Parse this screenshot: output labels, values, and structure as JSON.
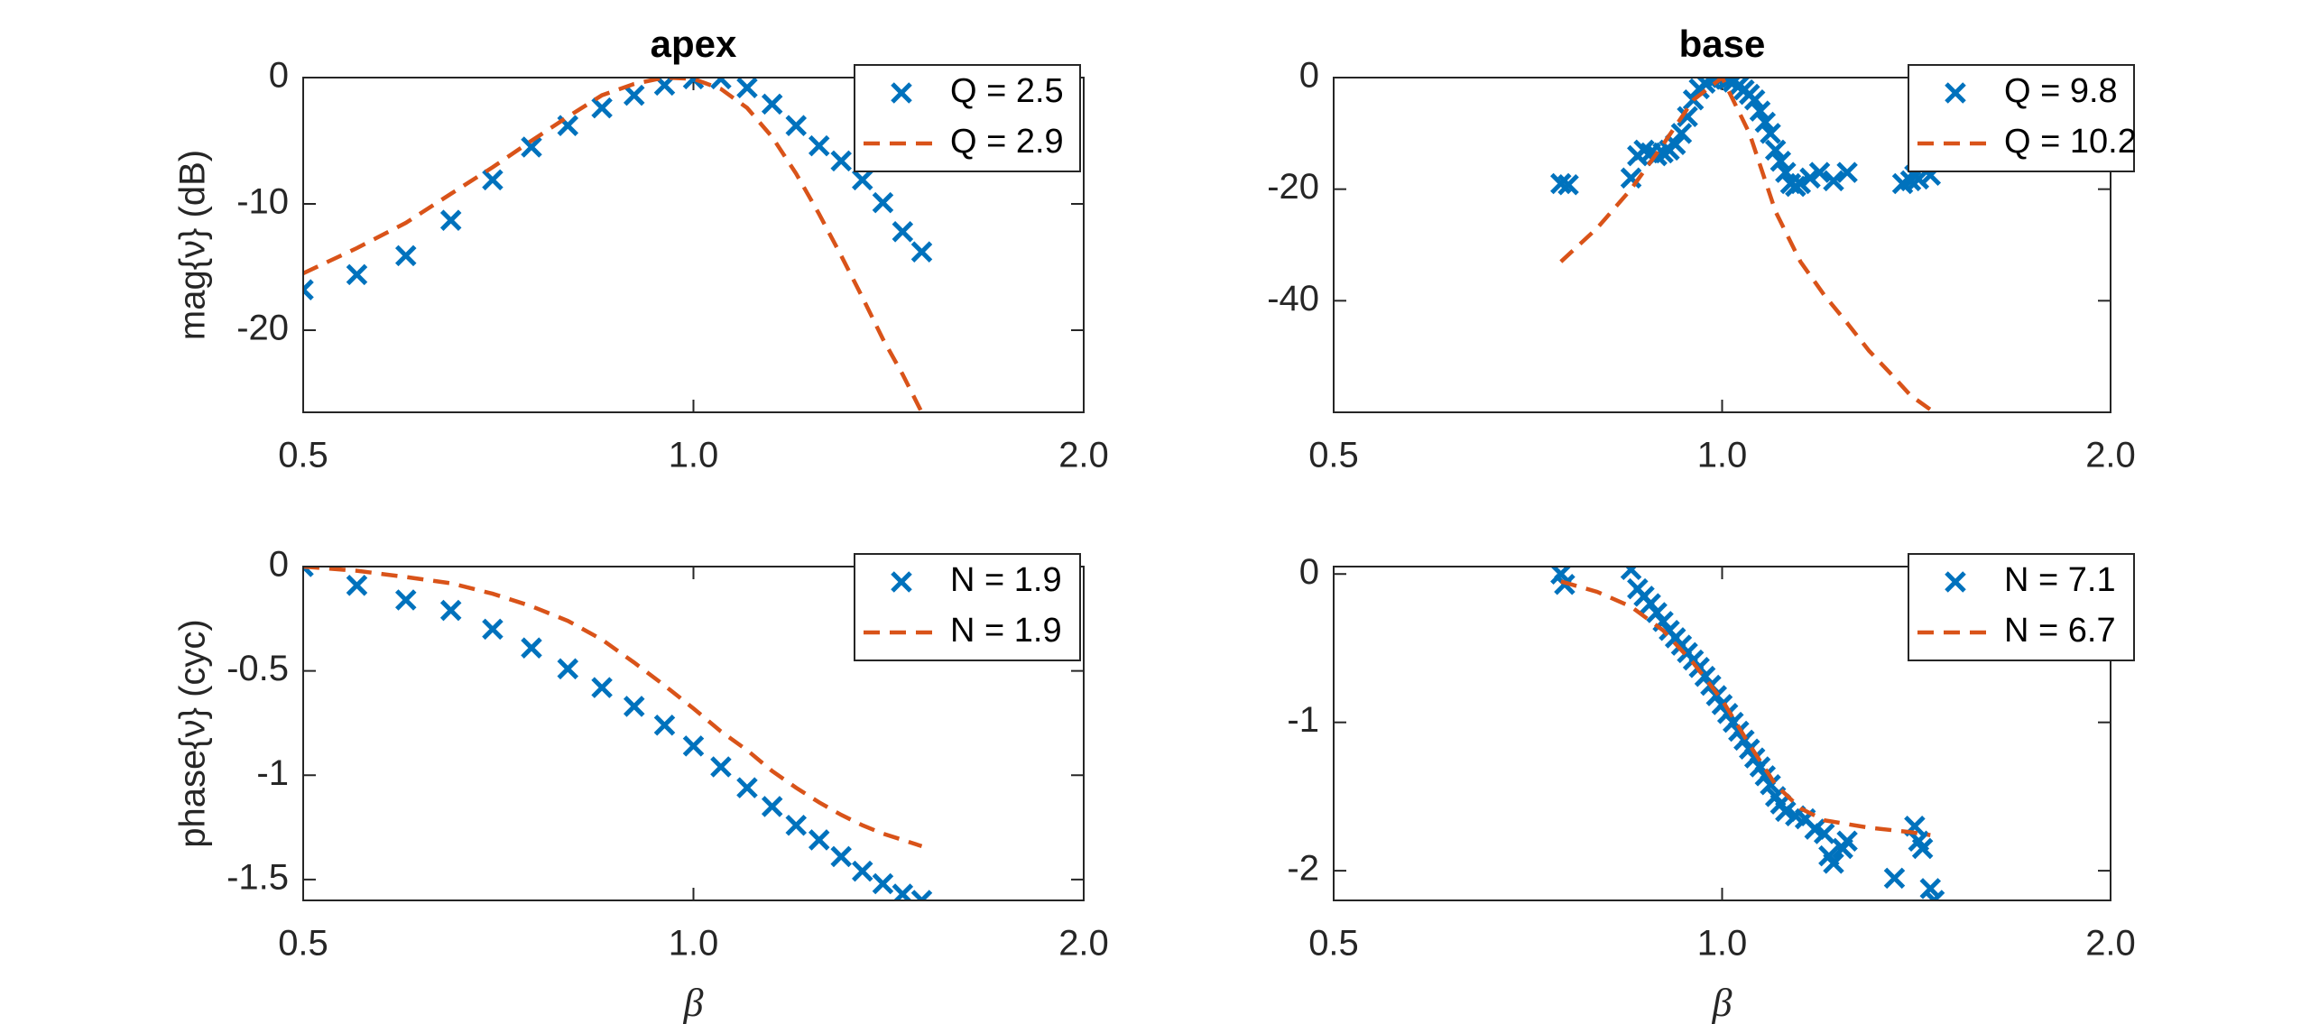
{
  "chart_data": [
    {
      "type": "line",
      "title": "apex",
      "ylabel": "mag{ν} (dB)",
      "xscale": "log",
      "legend": "northeast",
      "xlim": [
        0.5,
        2
      ],
      "xticks": [
        0.5,
        {
          "value": 1,
          "label": "1.0"
        },
        {
          "value": 2,
          "label": "2.0"
        }
      ],
      "ylim": [
        -26.5,
        0
      ],
      "yticks": [
        -20,
        -10,
        0
      ],
      "series": [
        {
          "name": "Q = 2.5",
          "color": "#0072bd",
          "marker": "x",
          "x": [
            0.5,
            0.55,
            0.6,
            0.65,
            0.7,
            0.75,
            0.8,
            0.85,
            0.9,
            0.95,
            1.0,
            1.05,
            1.1,
            1.15,
            1.2,
            1.25,
            1.3,
            1.35,
            1.4,
            1.45,
            1.5
          ],
          "values": [
            -16.8,
            -15.6,
            -14.1,
            -11.3,
            -8.1,
            -5.5,
            -3.8,
            -2.4,
            -1.4,
            -0.6,
            -0.1,
            -0.1,
            -0.8,
            -2.1,
            -3.8,
            -5.4,
            -6.6,
            -8.1,
            -9.9,
            -12.2,
            -13.8
          ]
        },
        {
          "name": "Q = 2.9",
          "color": "#d95319",
          "line": "dashed",
          "x": [
            0.5,
            0.55,
            0.6,
            0.65,
            0.7,
            0.75,
            0.8,
            0.85,
            0.9,
            0.95,
            1.0,
            1.05,
            1.1,
            1.15,
            1.2,
            1.25,
            1.3,
            1.35,
            1.4,
            1.45,
            1.5
          ],
          "values": [
            -15.5,
            -13.5,
            -11.5,
            -9.2,
            -7.1,
            -5,
            -3.1,
            -1.4,
            -0.5,
            0,
            -0.1,
            -0.9,
            -2.4,
            -4.7,
            -7.6,
            -10.8,
            -14.1,
            -17.4,
            -20.7,
            -23.5,
            -26.5
          ]
        }
      ]
    },
    {
      "type": "line",
      "title": "base",
      "xscale": "log",
      "legend": "northeast",
      "xlim": [
        0.5,
        2
      ],
      "xticks": [
        0.5,
        {
          "value": 1,
          "label": "1.0"
        },
        {
          "value": 2,
          "label": "2.0"
        }
      ],
      "ylim": [
        -60,
        0
      ],
      "yticks": [
        -40,
        -20,
        0
      ],
      "series": [
        {
          "name": "Q = 9.8",
          "color": "#0072bd",
          "marker": "x",
          "x": [
            0.75,
            0.76,
            0.85,
            0.86,
            0.87,
            0.88,
            0.89,
            0.9,
            0.91,
            0.92,
            0.93,
            0.94,
            0.95,
            0.96,
            0.97,
            0.98,
            0.99,
            1.0,
            1.01,
            1.02,
            1.03,
            1.04,
            1.05,
            1.06,
            1.07,
            1.08,
            1.09,
            1.1,
            1.11,
            1.12,
            1.13,
            1.14,
            1.15,
            1.17,
            1.19,
            1.22,
            1.25,
            1.38,
            1.4,
            1.41,
            1.42,
            1.45
          ],
          "values": [
            -19,
            -19.2,
            -18,
            -14,
            -13,
            -13.5,
            -14,
            -13.5,
            -13,
            -12,
            -10,
            -7,
            -4,
            -2,
            -1,
            -0.3,
            0,
            0,
            -0.3,
            -0.8,
            -1.5,
            -2.2,
            -3,
            -4,
            -6,
            -8,
            -10,
            -13,
            -15,
            -17,
            -19,
            -19.5,
            -19,
            -18,
            -17,
            -18.5,
            -17,
            -19,
            -18.5,
            -17.5,
            -18.2,
            -17.5
          ]
        },
        {
          "name": "Q = 10.2",
          "color": "#d95319",
          "line": "dashed",
          "x": [
            0.75,
            0.8,
            0.85,
            0.9,
            0.95,
            1.0,
            1.05,
            1.1,
            1.15,
            1.2,
            1.25,
            1.3,
            1.35,
            1.4,
            1.46
          ],
          "values": [
            -33,
            -27,
            -20,
            -12,
            -4,
            0,
            -10,
            -24,
            -33,
            -39,
            -44,
            -49,
            -53,
            -57,
            -60
          ]
        }
      ]
    },
    {
      "type": "line",
      "ylabel": "phase{ν} (cyc)",
      "xlabel": "β",
      "xscale": "log",
      "legend": "northeast",
      "xlim": [
        0.5,
        2
      ],
      "xticks": [
        0.5,
        {
          "value": 1,
          "label": "1.0"
        },
        {
          "value": 2,
          "label": "2.0"
        }
      ],
      "ylim": [
        -1.6,
        0
      ],
      "yticks": [
        -1.5,
        -1,
        -0.5,
        0
      ],
      "series": [
        {
          "name": "N = 1.9",
          "color": "#0072bd",
          "marker": "x",
          "x": [
            0.5,
            0.55,
            0.6,
            0.65,
            0.7,
            0.75,
            0.8,
            0.85,
            0.9,
            0.95,
            1.0,
            1.05,
            1.1,
            1.15,
            1.2,
            1.25,
            1.3,
            1.35,
            1.4,
            1.45,
            1.5
          ],
          "values": [
            0,
            -0.09,
            -0.16,
            -0.21,
            -0.3,
            -0.39,
            -0.49,
            -0.58,
            -0.67,
            -0.76,
            -0.86,
            -0.96,
            -1.06,
            -1.15,
            -1.24,
            -1.31,
            -1.39,
            -1.46,
            -1.52,
            -1.57,
            -1.6
          ]
        },
        {
          "name": "N = 1.9",
          "color": "#d95319",
          "line": "dashed",
          "x": [
            0.5,
            0.55,
            0.6,
            0.65,
            0.7,
            0.75,
            0.8,
            0.85,
            0.9,
            0.95,
            1.0,
            1.05,
            1.1,
            1.15,
            1.2,
            1.25,
            1.3,
            1.35,
            1.4,
            1.45,
            1.5
          ],
          "values": [
            0,
            -0.02,
            -0.05,
            -0.08,
            -0.13,
            -0.19,
            -0.26,
            -0.35,
            -0.46,
            -0.57,
            -0.68,
            -0.79,
            -0.88,
            -0.98,
            -1.06,
            -1.13,
            -1.19,
            -1.24,
            -1.28,
            -1.31,
            -1.34
          ]
        }
      ]
    },
    {
      "type": "line",
      "xlabel": "β",
      "xscale": "log",
      "legend": "northeast",
      "xlim": [
        0.5,
        2
      ],
      "xticks": [
        0.5,
        {
          "value": 1,
          "label": "1.0"
        },
        {
          "value": 2,
          "label": "2.0"
        }
      ],
      "ylim": [
        -2.2,
        0.05
      ],
      "yticks": [
        -2,
        -1,
        0
      ],
      "series": [
        {
          "name": "N = 7.1",
          "color": "#0072bd",
          "marker": "x",
          "x": [
            0.75,
            0.755,
            0.85,
            0.86,
            0.87,
            0.88,
            0.89,
            0.9,
            0.91,
            0.92,
            0.93,
            0.94,
            0.95,
            0.96,
            0.97,
            0.98,
            0.99,
            1.0,
            1.01,
            1.02,
            1.03,
            1.04,
            1.05,
            1.06,
            1.07,
            1.08,
            1.09,
            1.1,
            1.11,
            1.12,
            1.14,
            1.16,
            1.18,
            1.2,
            1.21,
            1.22,
            1.24,
            1.25,
            1.36,
            1.41,
            1.42,
            1.43,
            1.45,
            1.46
          ],
          "values": [
            0,
            -0.07,
            0.03,
            -0.1,
            -0.15,
            -0.2,
            -0.26,
            -0.32,
            -0.38,
            -0.43,
            -0.48,
            -0.53,
            -0.58,
            -0.63,
            -0.69,
            -0.75,
            -0.82,
            -0.88,
            -0.94,
            -1,
            -1.06,
            -1.12,
            -1.18,
            -1.24,
            -1.3,
            -1.36,
            -1.42,
            -1.5,
            -1.55,
            -1.6,
            -1.63,
            -1.65,
            -1.72,
            -1.75,
            -1.9,
            -1.95,
            -1.85,
            -1.8,
            -2.05,
            -1.7,
            -1.8,
            -1.85,
            -2.12,
            -2.2
          ]
        },
        {
          "name": "N = 6.7",
          "color": "#d95319",
          "line": "dashed",
          "x": [
            0.75,
            0.8,
            0.85,
            0.9,
            0.95,
            1.0,
            1.05,
            1.1,
            1.15,
            1.2,
            1.3,
            1.4,
            1.45
          ],
          "values": [
            -0.05,
            -0.12,
            -0.22,
            -0.38,
            -0.6,
            -0.85,
            -1.15,
            -1.42,
            -1.58,
            -1.66,
            -1.71,
            -1.74,
            -1.76
          ]
        }
      ]
    }
  ]
}
